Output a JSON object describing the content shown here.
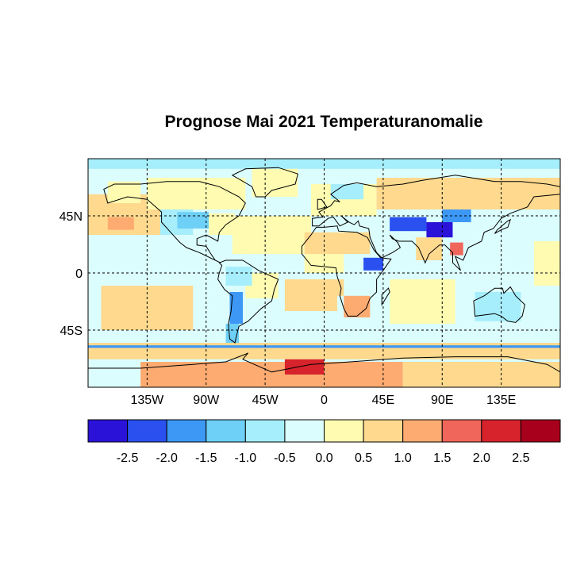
{
  "title": "Prognose Mai 2021 Temperaturanomalie",
  "map": {
    "projection": "equirectangular",
    "lon_range": [
      -180,
      180
    ],
    "lat_range": [
      -90,
      90
    ],
    "grid": "dashed",
    "x_ticks": [
      {
        "value": -135,
        "label": "135W"
      },
      {
        "value": -90,
        "label": "90W"
      },
      {
        "value": -45,
        "label": "45W"
      },
      {
        "value": 0,
        "label": "0"
      },
      {
        "value": 45,
        "label": "45E"
      },
      {
        "value": 90,
        "label": "90E"
      },
      {
        "value": 135,
        "label": "135E"
      }
    ],
    "y_ticks": [
      {
        "value": 45,
        "label": "45N"
      },
      {
        "value": 0,
        "label": "0"
      },
      {
        "value": -45,
        "label": "45S"
      }
    ]
  },
  "colorbar": {
    "colors": [
      "#2b12d8",
      "#2a50f0",
      "#3d98f5",
      "#6fd0f7",
      "#a6eefb",
      "#dcfdfd",
      "#fffcb2",
      "#fed98e",
      "#fdab71",
      "#f0665a",
      "#d6232c",
      "#a8001c"
    ],
    "labels": [
      "-2.5",
      "-2.0",
      "-1.5",
      "-1.0",
      "-0.5",
      "0.0",
      "0.5",
      "1.0",
      "1.5",
      "2.0",
      "2.5"
    ]
  },
  "anomaly_regions": [
    {
      "name": "ocean",
      "color": "#dcfdfd",
      "lon": [
        -180,
        180
      ],
      "lat": [
        -90,
        90
      ]
    },
    {
      "name": "arctic",
      "color": "#a6eefb",
      "lon": [
        -180,
        180
      ],
      "lat": [
        82,
        90
      ]
    },
    {
      "name": "north-pacific",
      "color": "#fed98e",
      "lon": [
        -180,
        -120
      ],
      "lat": [
        30,
        62
      ]
    },
    {
      "name": "north-pacific-warm",
      "color": "#fdab71",
      "lon": [
        -165,
        -145
      ],
      "lat": [
        34,
        44
      ]
    },
    {
      "name": "alaska",
      "color": "#fffcb2",
      "lon": [
        -165,
        -140
      ],
      "lat": [
        55,
        72
      ]
    },
    {
      "name": "canada",
      "color": "#fffcb2",
      "lon": [
        -135,
        -60
      ],
      "lat": [
        50,
        75
      ]
    },
    {
      "name": "greenland",
      "color": "#fffcb2",
      "lon": [
        -55,
        -20
      ],
      "lat": [
        60,
        82
      ]
    },
    {
      "name": "usa-west",
      "color": "#a6eefb",
      "lon": [
        -125,
        -100
      ],
      "lat": [
        30,
        50
      ]
    },
    {
      "name": "usa-central",
      "color": "#6fd0f7",
      "lon": [
        -112,
        -88
      ],
      "lat": [
        35,
        48
      ]
    },
    {
      "name": "usa-east",
      "color": "#fffcb2",
      "lon": [
        -88,
        -68
      ],
      "lat": [
        30,
        47
      ]
    },
    {
      "name": "mid-atlantic",
      "color": "#fffcb2",
      "lon": [
        -70,
        -10
      ],
      "lat": [
        15,
        45
      ]
    },
    {
      "name": "europe",
      "color": "#fffcb2",
      "lon": [
        -10,
        40
      ],
      "lat": [
        45,
        70
      ]
    },
    {
      "name": "russia",
      "color": "#fed98e",
      "lon": [
        40,
        180
      ],
      "lat": [
        50,
        75
      ]
    },
    {
      "name": "scandinavia-cool",
      "color": "#a6eefb",
      "lon": [
        5,
        30
      ],
      "lat": [
        58,
        70
      ]
    },
    {
      "name": "north-africa",
      "color": "#fed98e",
      "lon": [
        -15,
        35
      ],
      "lat": [
        15,
        32
      ]
    },
    {
      "name": "central-asia",
      "color": "#2a50f0",
      "lon": [
        50,
        78
      ],
      "lat": [
        33,
        44
      ]
    },
    {
      "name": "tibet",
      "color": "#2b12d8",
      "lon": [
        78,
        98
      ],
      "lat": [
        28,
        40
      ]
    },
    {
      "name": "mongolia",
      "color": "#3d98f5",
      "lon": [
        90,
        112
      ],
      "lat": [
        40,
        50
      ]
    },
    {
      "name": "india",
      "color": "#fed98e",
      "lon": [
        70,
        90
      ],
      "lat": [
        10,
        28
      ]
    },
    {
      "name": "se-asia-warm",
      "color": "#f0665a",
      "lon": [
        96,
        106
      ],
      "lat": [
        14,
        24
      ]
    },
    {
      "name": "east-africa-cool",
      "color": "#2a50f0",
      "lon": [
        30,
        45
      ],
      "lat": [
        2,
        12
      ]
    },
    {
      "name": "west-africa",
      "color": "#fffcb2",
      "lon": [
        -15,
        15
      ],
      "lat": [
        0,
        15
      ]
    },
    {
      "name": "southern-africa-warm",
      "color": "#fdab71",
      "lon": [
        15,
        35
      ],
      "lat": [
        -35,
        -18
      ]
    },
    {
      "name": "angola-coast",
      "color": "#fed98e",
      "lon": [
        8,
        15
      ],
      "lat": [
        -18,
        -5
      ]
    },
    {
      "name": "brazil",
      "color": "#fffcb2",
      "lon": [
        -60,
        -35
      ],
      "lat": [
        -20,
        0
      ]
    },
    {
      "name": "amazon-cool",
      "color": "#a6eefb",
      "lon": [
        -75,
        -55
      ],
      "lat": [
        -10,
        5
      ]
    },
    {
      "name": "andes-cool",
      "color": "#3d98f5",
      "lon": [
        -72,
        -62
      ],
      "lat": [
        -40,
        -15
      ]
    },
    {
      "name": "patagonia",
      "color": "#6fd0f7",
      "lon": [
        -75,
        -65
      ],
      "lat": [
        -55,
        -40
      ]
    },
    {
      "name": "south-atlantic",
      "color": "#fed98e",
      "lon": [
        -30,
        10
      ],
      "lat": [
        -30,
        -5
      ]
    },
    {
      "name": "indian-ocean",
      "color": "#fffcb2",
      "lon": [
        50,
        100
      ],
      "lat": [
        -40,
        -5
      ]
    },
    {
      "name": "australia",
      "color": "#a6eefb",
      "lon": [
        115,
        150
      ],
      "lat": [
        -38,
        -15
      ]
    },
    {
      "name": "se-pacific",
      "color": "#fed98e",
      "lon": [
        -170,
        -100
      ],
      "lat": [
        -45,
        -10
      ]
    },
    {
      "name": "tropical-pacific",
      "color": "#fffcb2",
      "lon": [
        160,
        180
      ],
      "lat": [
        -10,
        25
      ]
    },
    {
      "name": "south-ocean-warm",
      "color": "#fed98e",
      "lon": [
        -180,
        180
      ],
      "lat": [
        -68,
        -55
      ]
    },
    {
      "name": "south-ocean-cool",
      "color": "#3d98f5",
      "lon": [
        -180,
        180
      ],
      "lat": [
        -59,
        -57
      ]
    },
    {
      "name": "antarctica",
      "color": "#fdab71",
      "lon": [
        -140,
        60
      ],
      "lat": [
        -90,
        -70
      ]
    },
    {
      "name": "antarctica-hot",
      "color": "#d6232c",
      "lon": [
        -30,
        0
      ],
      "lat": [
        -80,
        -68
      ]
    },
    {
      "name": "antarctica-east",
      "color": "#fed98e",
      "lon": [
        60,
        180
      ],
      "lat": [
        -90,
        -70
      ]
    }
  ],
  "coastlines": [
    [
      [
        -168,
        66
      ],
      [
        -160,
        70
      ],
      [
        -140,
        70
      ],
      [
        -120,
        72
      ],
      [
        -95,
        72
      ],
      [
        -80,
        68
      ],
      [
        -65,
        60
      ],
      [
        -60,
        55
      ],
      [
        -65,
        45
      ],
      [
        -75,
        38
      ],
      [
        -80,
        32
      ],
      [
        -81,
        25
      ],
      [
        -90,
        30
      ],
      [
        -97,
        27
      ],
      [
        -97,
        22
      ],
      [
        -90,
        21
      ],
      [
        -87,
        16
      ],
      [
        -83,
        10
      ],
      [
        -79,
        8
      ],
      [
        -85,
        11
      ],
      [
        -95,
        16
      ],
      [
        -105,
        20
      ],
      [
        -110,
        24
      ],
      [
        -117,
        32
      ],
      [
        -124,
        40
      ],
      [
        -124,
        48
      ],
      [
        -135,
        58
      ],
      [
        -150,
        60
      ],
      [
        -165,
        55
      ],
      [
        -168,
        66
      ]
    ],
    [
      [
        -52,
        60
      ],
      [
        -45,
        60
      ],
      [
        -40,
        65
      ],
      [
        -22,
        70
      ],
      [
        -20,
        78
      ],
      [
        -35,
        83
      ],
      [
        -60,
        82
      ],
      [
        -70,
        77
      ],
      [
        -55,
        68
      ],
      [
        -52,
        60
      ]
    ],
    [
      [
        -80,
        8
      ],
      [
        -75,
        10
      ],
      [
        -62,
        10
      ],
      [
        -50,
        2
      ],
      [
        -35,
        -5
      ],
      [
        -38,
        -13
      ],
      [
        -40,
        -22
      ],
      [
        -48,
        -28
      ],
      [
        -58,
        -38
      ],
      [
        -65,
        -42
      ],
      [
        -67,
        -50
      ],
      [
        -68,
        -55
      ],
      [
        -72,
        -52
      ],
      [
        -73,
        -40
      ],
      [
        -71,
        -30
      ],
      [
        -70,
        -18
      ],
      [
        -76,
        -13
      ],
      [
        -81,
        -5
      ],
      [
        -80,
        0
      ],
      [
        -78,
        6
      ],
      [
        -80,
        8
      ]
    ],
    [
      [
        -17,
        21
      ],
      [
        -17,
        15
      ],
      [
        -10,
        6
      ],
      [
        0,
        5
      ],
      [
        9,
        4
      ],
      [
        10,
        -3
      ],
      [
        13,
        -12
      ],
      [
        12,
        -18
      ],
      [
        15,
        -28
      ],
      [
        18,
        -34
      ],
      [
        25,
        -34
      ],
      [
        32,
        -28
      ],
      [
        35,
        -20
      ],
      [
        40,
        -15
      ],
      [
        40,
        -5
      ],
      [
        45,
        2
      ],
      [
        51,
        11
      ],
      [
        43,
        12
      ],
      [
        38,
        18
      ],
      [
        33,
        28
      ],
      [
        25,
        32
      ],
      [
        11,
        33
      ],
      [
        10,
        37
      ],
      [
        0,
        36
      ],
      [
        -6,
        36
      ],
      [
        -10,
        30
      ],
      [
        -17,
        21
      ]
    ],
    [
      [
        -9,
        37
      ],
      [
        -9,
        43
      ],
      [
        -1,
        44
      ],
      [
        -4,
        48
      ],
      [
        5,
        53
      ],
      [
        8,
        57
      ],
      [
        12,
        56
      ],
      [
        5,
        62
      ],
      [
        15,
        69
      ],
      [
        25,
        71
      ],
      [
        40,
        68
      ],
      [
        60,
        70
      ],
      [
        75,
        73
      ],
      [
        100,
        77
      ],
      [
        130,
        72
      ],
      [
        150,
        72
      ],
      [
        170,
        70
      ],
      [
        180,
        68
      ],
      [
        180,
        62
      ],
      [
        160,
        60
      ],
      [
        155,
        52
      ],
      [
        142,
        47
      ],
      [
        135,
        43
      ],
      [
        129,
        35
      ],
      [
        122,
        32
      ],
      [
        120,
        25
      ],
      [
        110,
        20
      ],
      [
        106,
        10
      ],
      [
        100,
        13
      ],
      [
        104,
        2
      ],
      [
        98,
        8
      ],
      [
        98,
        16
      ],
      [
        92,
        22
      ],
      [
        88,
        22
      ],
      [
        80,
        15
      ],
      [
        77,
        8
      ],
      [
        72,
        20
      ],
      [
        67,
        25
      ],
      [
        57,
        25
      ],
      [
        52,
        27
      ],
      [
        50,
        30
      ],
      [
        56,
        24
      ],
      [
        58,
        20
      ],
      [
        52,
        16
      ],
      [
        44,
        12
      ],
      [
        40,
        16
      ],
      [
        35,
        28
      ],
      [
        34,
        35
      ],
      [
        27,
        37
      ],
      [
        26,
        41
      ],
      [
        23,
        38
      ],
      [
        19,
        40
      ],
      [
        13,
        45
      ],
      [
        18,
        40
      ],
      [
        12,
        37
      ],
      [
        7,
        44
      ],
      [
        3,
        43
      ],
      [
        -4,
        37
      ],
      [
        -9,
        37
      ]
    ],
    [
      [
        -5,
        50
      ],
      [
        -5,
        58
      ],
      [
        -2,
        58
      ],
      [
        2,
        52
      ],
      [
        -5,
        50
      ]
    ],
    [
      [
        114,
        -22
      ],
      [
        122,
        -18
      ],
      [
        130,
        -12
      ],
      [
        136,
        -12
      ],
      [
        137,
        -16
      ],
      [
        142,
        -11
      ],
      [
        146,
        -18
      ],
      [
        153,
        -25
      ],
      [
        151,
        -34
      ],
      [
        146,
        -39
      ],
      [
        140,
        -38
      ],
      [
        135,
        -34
      ],
      [
        130,
        -32
      ],
      [
        115,
        -34
      ],
      [
        114,
        -22
      ]
    ],
    [
      [
        44,
        -25
      ],
      [
        50,
        -15
      ],
      [
        49,
        -12
      ],
      [
        44,
        -17
      ],
      [
        44,
        -25
      ]
    ],
    [
      [
        130,
        31
      ],
      [
        135,
        34
      ],
      [
        140,
        36
      ],
      [
        142,
        42
      ],
      [
        140,
        41
      ],
      [
        132,
        34
      ],
      [
        130,
        31
      ]
    ],
    [
      [
        -180,
        -75
      ],
      [
        -140,
        -75
      ],
      [
        -100,
        -72
      ],
      [
        -75,
        -70
      ],
      [
        -60,
        -64
      ],
      [
        -58,
        -63
      ],
      [
        -62,
        -68
      ],
      [
        -40,
        -78
      ],
      [
        -10,
        -72
      ],
      [
        20,
        -70
      ],
      [
        60,
        -67
      ],
      [
        100,
        -66
      ],
      [
        140,
        -66
      ],
      [
        170,
        -72
      ],
      [
        180,
        -78
      ],
      [
        180,
        -90
      ],
      [
        -180,
        -90
      ],
      [
        -180,
        -75
      ]
    ]
  ]
}
